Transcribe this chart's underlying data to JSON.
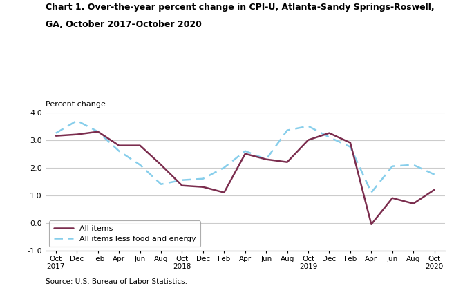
{
  "title_line1": "Chart 1. Over-the-year percent change in CPI-U, Atlanta-Sandy Springs-Roswell,",
  "title_line2": "GA, October 2017–October 2020",
  "ylabel": "Percent change",
  "source": "Source: U.S. Bureau of Labor Statistics.",
  "ylim": [
    -1.0,
    4.0
  ],
  "yticks": [
    -1.0,
    0.0,
    1.0,
    2.0,
    3.0,
    4.0
  ],
  "x_labels": [
    "Oct\n2017",
    "Dec",
    "Feb",
    "Apr",
    "Jun",
    "Aug",
    "Oct\n2018",
    "Dec",
    "Feb",
    "Apr",
    "Jun",
    "Aug",
    "Oct\n2019",
    "Dec",
    "Feb",
    "Apr",
    "Jun",
    "Aug",
    "Oct\n2020"
  ],
  "all_items": [
    3.15,
    3.2,
    3.3,
    2.8,
    2.8,
    2.1,
    1.35,
    1.3,
    1.1,
    2.5,
    2.3,
    2.2,
    3.0,
    3.25,
    2.9,
    -0.05,
    0.9,
    0.7,
    1.2
  ],
  "core": [
    3.25,
    3.7,
    3.3,
    2.6,
    2.1,
    1.4,
    1.55,
    1.6,
    2.0,
    2.6,
    2.3,
    3.35,
    3.5,
    3.1,
    2.75,
    1.1,
    2.05,
    2.1,
    1.75
  ],
  "all_items_color": "#7B2D4E",
  "core_color": "#87CEEB",
  "all_items_label": "All items",
  "core_label": "All items less food and energy",
  "background_color": "#ffffff",
  "grid_color": "#cccccc"
}
